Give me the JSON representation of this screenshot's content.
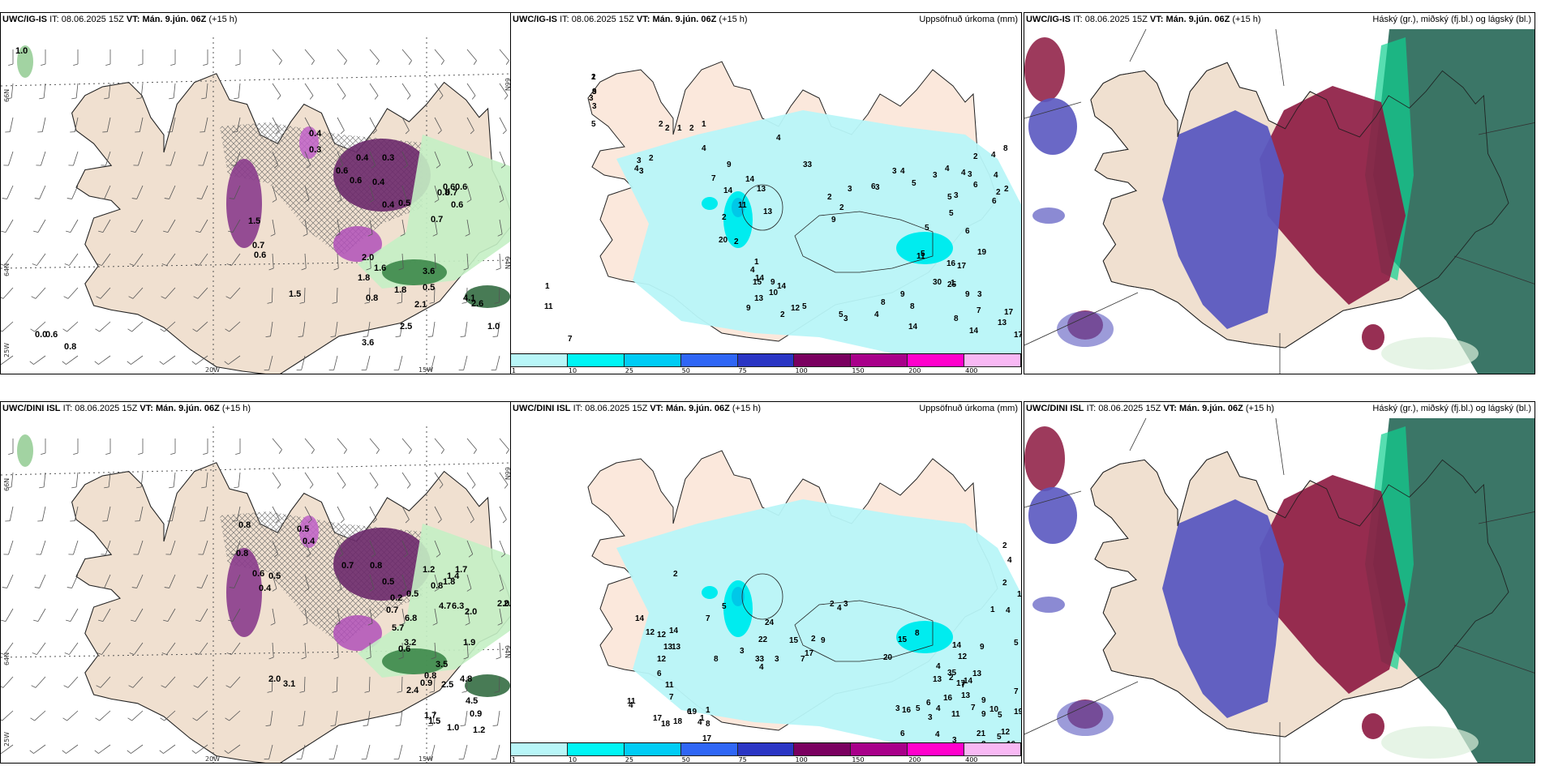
{
  "rows": [
    {
      "model": "UWC/IG-IS",
      "it_label": "IT:",
      "it_value": "08.06.2025 15Z",
      "vt_label": "VT:",
      "vt_value": "Mán. 9.jún. 06Z",
      "lead": "(+15 h)"
    },
    {
      "model": "UWC/DINI ISL",
      "it_label": "IT:",
      "it_value": "08.06.2025 15Z",
      "vt_label": "VT:",
      "vt_value": "Mán. 9.jún. 06Z",
      "lead": "(+15 h)"
    }
  ],
  "panel_subtitles": {
    "precip": "Uppsöfnuð úrkoma (mm)",
    "cloud": "Háský (gr.), miðský (fj.bl.) og lágský (bl.)"
  },
  "axes": {
    "lat_66": "66N",
    "lat_64": "64N",
    "lon_25": "25W",
    "lon_20": "20W",
    "lon_15": "15W"
  },
  "legend": {
    "ticks": [
      "1",
      "10",
      "25",
      "50",
      "75",
      "100",
      "150",
      "200",
      "400"
    ],
    "colors": [
      "#b8f6f8",
      "#00f5f5",
      "#00ccf5",
      "#2f66f5",
      "#2a35c4",
      "#7a0060",
      "#a8008a",
      "#ff00cc",
      "#f8b8f4"
    ]
  },
  "colors": {
    "land": "#f0e0d0",
    "land_precip": "#fbe8dc",
    "precip_light": "#b8f6f8",
    "precip_mid": "#00ecef",
    "wind_purple": "#8a3c8c",
    "wind_green": "#c4f0c4",
    "cloud_blue": "#5a58c0",
    "cloud_red": "#8c1840",
    "cloud_green": "#2a6a5a",
    "cloud_teal": "#10d090"
  },
  "top_left_labels": [
    "1.0",
    "0.4",
    "0.3",
    "0.6",
    "0.4",
    "0.3",
    "0.6",
    "0.4",
    "0.4",
    "0.5",
    "0.7",
    "0.6",
    "0.6",
    "0.8",
    "0.7",
    "0.6",
    "1.5",
    "0.7",
    "0.6",
    "2.0",
    "1.6",
    "3.6",
    "1.8",
    "0.5",
    "1.8",
    "0.8",
    "2.1",
    "4.1",
    "2.6",
    "1.0",
    "2.5",
    "3.6",
    "0.0",
    "0.6",
    "0.8",
    "1.5"
  ],
  "bottom_left_labels": [
    "0.8",
    "0.5",
    "0.4",
    "0.8",
    "0.6",
    "0.5",
    "0.4",
    "0.7",
    "0.8",
    "0.5",
    "0.2",
    "0.5",
    "1.2",
    "0.8",
    "1.8",
    "1.7",
    "0.7",
    "5.7",
    "6.8",
    "4.7",
    "6.3",
    "1.4",
    "2.0",
    "2.0",
    "2.4",
    "3.2",
    "0.6",
    "1.9",
    "3.5",
    "4.8",
    "2.5",
    "4.5",
    "0.8",
    "0.9",
    "2.4",
    "2.0",
    "3.1",
    "1.7",
    "1.5",
    "0.9",
    "1.2",
    "1.0"
  ],
  "top_mid_labels": [
    "2",
    "3",
    "3",
    "3",
    "5",
    "1",
    "2",
    "2",
    "1",
    "2",
    "1",
    "3",
    "4",
    "3",
    "2",
    "4",
    "9",
    "7",
    "4",
    "11",
    "14",
    "14",
    "13",
    "13",
    "33",
    "20",
    "2",
    "2",
    "1",
    "4",
    "14",
    "15",
    "13",
    "9",
    "10",
    "14",
    "9",
    "2",
    "12",
    "5",
    "2",
    "9",
    "2",
    "3",
    "6",
    "3",
    "3",
    "4",
    "5",
    "3",
    "4",
    "5",
    "4",
    "3",
    "2",
    "4",
    "2",
    "2",
    "3",
    "6",
    "8",
    "6",
    "4",
    "5",
    "5",
    "5",
    "6",
    "11",
    "16",
    "17",
    "19",
    "30",
    "25",
    "9",
    "3",
    "7",
    "17",
    "15",
    "8",
    "9",
    "8",
    "4",
    "5",
    "3",
    "14",
    "13",
    "17",
    "14",
    "8",
    "11",
    "7",
    "1",
    "1",
    "9"
  ],
  "bottom_mid_labels": [
    "2",
    "4",
    "2",
    "1",
    "4",
    "1",
    "2",
    "7",
    "5",
    "8",
    "3",
    "4",
    "3",
    "2",
    "14",
    "12",
    "12",
    "14",
    "13",
    "24",
    "22",
    "33",
    "13",
    "12",
    "6",
    "11",
    "7",
    "17",
    "11",
    "4",
    "18",
    "18",
    "19",
    "1",
    "1",
    "8",
    "17",
    "6",
    "4",
    "7",
    "2",
    "4",
    "3",
    "15",
    "17",
    "9",
    "15",
    "20",
    "35",
    "12",
    "13",
    "16",
    "4",
    "6",
    "5",
    "3",
    "3",
    "4",
    "11",
    "7",
    "9",
    "7",
    "2",
    "4",
    "8",
    "13",
    "17",
    "14",
    "13",
    "9",
    "10",
    "5",
    "19",
    "5",
    "12",
    "21",
    "3",
    "16",
    "16",
    "7",
    "5",
    "9",
    "14",
    "6",
    "3",
    "2"
  ]
}
